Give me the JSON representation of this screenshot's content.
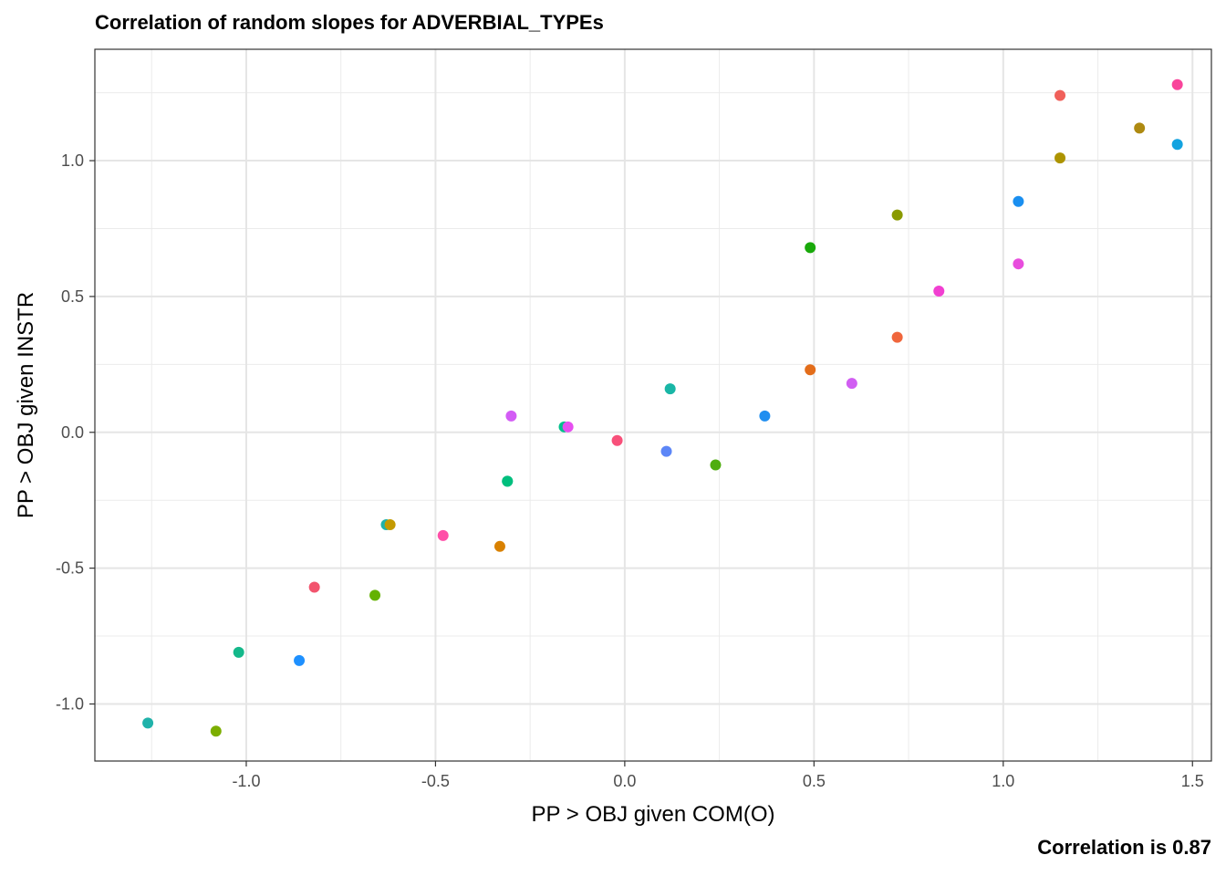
{
  "chart_data": {
    "type": "scatter",
    "title": "Correlation of random slopes for ADVERBIAL_TYPEs",
    "xlabel": "PP > OBJ given COM(O)",
    "ylabel": "PP > OBJ given INSTR",
    "caption": "Correlation is  0.87",
    "xlim": [
      -1.4,
      1.55
    ],
    "ylim": [
      -1.21,
      1.41
    ],
    "x_ticks": [
      -1.0,
      -0.5,
      0.0,
      0.5,
      1.0,
      1.5
    ],
    "x_tick_labels": [
      "-1.0",
      "-0.5",
      "0.0",
      "0.5",
      "1.0",
      "1.5"
    ],
    "y_ticks": [
      -1.0,
      -0.5,
      0.0,
      0.5,
      1.0
    ],
    "y_tick_labels": [
      "-1.0",
      "-0.5",
      "0.0",
      "0.5",
      "1.0"
    ],
    "grid": true,
    "legend": "none",
    "points": [
      {
        "x": -1.26,
        "y": -1.07,
        "color": "#20b2aa"
      },
      {
        "x": -1.08,
        "y": -1.1,
        "color": "#7cae00"
      },
      {
        "x": -1.02,
        "y": -0.81,
        "color": "#14b88a"
      },
      {
        "x": -0.86,
        "y": -0.84,
        "color": "#1e90ff"
      },
      {
        "x": -0.82,
        "y": -0.57,
        "color": "#f2546e"
      },
      {
        "x": -0.66,
        "y": -0.6,
        "color": "#64b200"
      },
      {
        "x": -0.63,
        "y": -0.34,
        "color": "#20b2aa"
      },
      {
        "x": -0.62,
        "y": -0.34,
        "color": "#c49a00"
      },
      {
        "x": -0.48,
        "y": -0.38,
        "color": "#ff4fa8"
      },
      {
        "x": -0.33,
        "y": -0.42,
        "color": "#d98100"
      },
      {
        "x": -0.31,
        "y": -0.18,
        "color": "#20b2aa"
      },
      {
        "x": -0.31,
        "y": -0.18,
        "color": "#00bf7d"
      },
      {
        "x": -0.3,
        "y": 0.06,
        "color": "#d35cf5"
      },
      {
        "x": -0.16,
        "y": 0.02,
        "color": "#00c08b"
      },
      {
        "x": -0.15,
        "y": 0.02,
        "color": "#e64ff0"
      },
      {
        "x": -0.02,
        "y": -0.03,
        "color": "#f8507a"
      },
      {
        "x": 0.11,
        "y": -0.07,
        "color": "#5c86f7"
      },
      {
        "x": 0.12,
        "y": 0.16,
        "color": "#19b6a6"
      },
      {
        "x": 0.24,
        "y": -0.12,
        "color": "#4fad0f"
      },
      {
        "x": 0.37,
        "y": 0.06,
        "color": "#1f8ef0"
      },
      {
        "x": 0.49,
        "y": 0.23,
        "color": "#e36d1a"
      },
      {
        "x": 0.49,
        "y": 0.68,
        "color": "#19a90a"
      },
      {
        "x": 0.6,
        "y": 0.18,
        "color": "#d15ef2"
      },
      {
        "x": 0.72,
        "y": 0.35,
        "color": "#f0663c"
      },
      {
        "x": 0.72,
        "y": 0.8,
        "color": "#8a9a00"
      },
      {
        "x": 0.83,
        "y": 0.52,
        "color": "#f13fd1"
      },
      {
        "x": 1.04,
        "y": 0.85,
        "color": "#1a8ff0"
      },
      {
        "x": 1.04,
        "y": 0.62,
        "color": "#e84ddd"
      },
      {
        "x": 1.15,
        "y": 1.24,
        "color": "#f0605a"
      },
      {
        "x": 1.15,
        "y": 1.01,
        "color": "#ad9400"
      },
      {
        "x": 1.36,
        "y": 1.12,
        "color": "#ae8a11"
      },
      {
        "x": 1.46,
        "y": 1.06,
        "color": "#13a3e0"
      },
      {
        "x": 1.46,
        "y": 1.28,
        "color": "#f9449b"
      }
    ]
  }
}
